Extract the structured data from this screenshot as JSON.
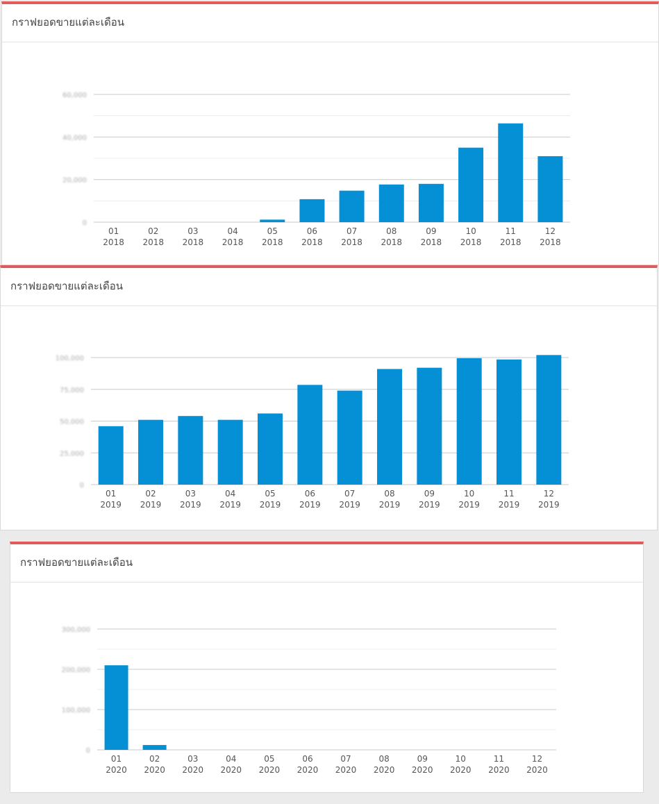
{
  "panels": [
    {
      "title": "กราฟยอดขายแต่ละเดือน",
      "chart_data": {
        "type": "bar",
        "categories": [
          "01|2018",
          "02|2018",
          "03|2018",
          "04|2018",
          "05|2018",
          "06|2018",
          "07|2018",
          "08|2018",
          "09|2018",
          "10|2018",
          "11|2018",
          "12|2018"
        ],
        "values": [
          0,
          0,
          0,
          0,
          1200,
          10800,
          14800,
          17700,
          18000,
          35000,
          46400,
          31000
        ],
        "ylim": [
          0,
          60000
        ],
        "yticks": [
          0,
          20000,
          40000,
          60000
        ],
        "ytick_labels": [
          "0",
          "20,000",
          "40,000",
          "60,000"
        ],
        "title": "",
        "xlabel": "",
        "ylabel": "",
        "grid": true
      }
    },
    {
      "title": "กราฟยอดขายแต่ละเดือน",
      "chart_data": {
        "type": "bar",
        "categories": [
          "01|2019",
          "02|2019",
          "03|2019",
          "04|2019",
          "05|2019",
          "06|2019",
          "07|2019",
          "08|2019",
          "09|2019",
          "10|2019",
          "11|2019",
          "12|2019"
        ],
        "values": [
          46000,
          51000,
          54000,
          51000,
          56000,
          78500,
          74000,
          91000,
          92000,
          99500,
          98500,
          102000
        ],
        "ylim": [
          0,
          100000
        ],
        "yticks": [
          0,
          25000,
          50000,
          75000,
          100000
        ],
        "ytick_labels": [
          "0",
          "25,000",
          "50,000",
          "75,000",
          "100,000"
        ],
        "title": "",
        "xlabel": "",
        "ylabel": "",
        "grid": true
      }
    },
    {
      "title": "กราฟยอดขายแต่ละเดือน",
      "chart_data": {
        "type": "bar",
        "categories": [
          "01|2020",
          "02|2020",
          "03|2020",
          "04|2020",
          "05|2020",
          "06|2020",
          "07|2020",
          "08|2020",
          "09|2020",
          "10|2020",
          "11|2020",
          "12|2020"
        ],
        "values": [
          210000,
          12000,
          0,
          0,
          0,
          0,
          0,
          0,
          0,
          0,
          0,
          0
        ],
        "ylim": [
          0,
          300000
        ],
        "yticks": [
          0,
          100000,
          200000,
          300000
        ],
        "ytick_labels": [
          "0",
          "100,000",
          "200,000",
          "300,000"
        ],
        "title": "",
        "xlabel": "",
        "ylabel": "",
        "grid": true
      }
    }
  ],
  "colors": {
    "bar": "#0590d6",
    "accent": "#e05c5c",
    "grid": "#c9c9c9"
  }
}
